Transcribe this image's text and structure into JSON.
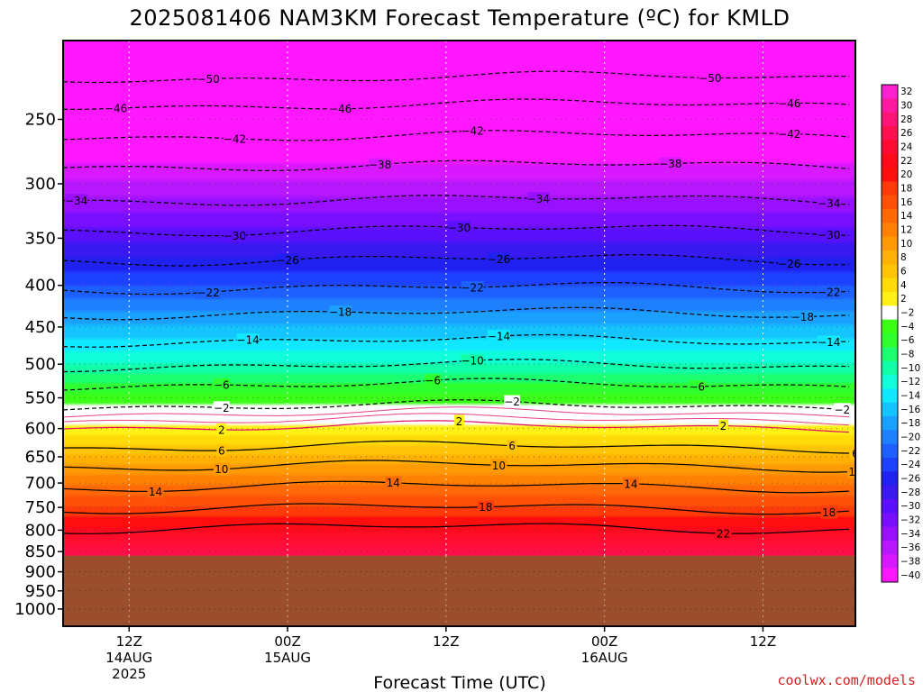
{
  "chart_data": {
    "type": "heatmap",
    "title": "2025081406 NAM3KM Forecast Temperature (ºC) for KMLD",
    "xlabel": "Forecast Time (UTC)",
    "ylabel": "",
    "y_scale": "log",
    "y_reversed": true,
    "y_ticks": [
      250,
      300,
      350,
      400,
      450,
      500,
      550,
      600,
      650,
      700,
      750,
      800,
      850,
      900,
      950,
      1000
    ],
    "y_range": [
      200,
      1050
    ],
    "x_range_hours": [
      -5,
      55
    ],
    "x_ticks": [
      {
        "hour": 0,
        "line1": "12Z",
        "line2": "14AUG",
        "line3": "2025"
      },
      {
        "hour": 12,
        "line1": "00Z",
        "line2": "15AUG",
        "line3": ""
      },
      {
        "hour": 24,
        "line1": "12Z",
        "line2": "",
        "line3": ""
      },
      {
        "hour": 36,
        "line1": "00Z",
        "line2": "16AUG",
        "line3": ""
      },
      {
        "hour": 48,
        "line1": "12Z",
        "line2": "",
        "line3": ""
      }
    ],
    "terrain_surface_pressure": 860,
    "terrain_color": "#9a4e2c",
    "colorbar": {
      "levels": [
        32,
        30,
        28,
        26,
        24,
        22,
        20,
        18,
        16,
        14,
        12,
        10,
        8,
        6,
        4,
        2,
        -2,
        -4,
        -6,
        -8,
        -10,
        -12,
        -14,
        -16,
        -18,
        -20,
        -22,
        -24,
        -26,
        -28,
        -30,
        -32,
        -34,
        -36,
        -38,
        -40
      ],
      "tick_labels": [
        "32",
        "30",
        "28",
        "26",
        "24",
        "22",
        "20",
        "18",
        "16",
        "14",
        "12",
        "10",
        "8",
        "6",
        "4",
        "2",
        "−2",
        "−4",
        "−6",
        "−8",
        "−10",
        "−12",
        "−14",
        "−16",
        "−18",
        "−20",
        "−22",
        "−24",
        "−26",
        "−28",
        "−30",
        "−32",
        "−34",
        "−36",
        "−38",
        "−40"
      ],
      "colors": [
        "#ff20d0",
        "#ff1aa0",
        "#ff1478",
        "#ff1050",
        "#ff0a32",
        "#ff0a1a",
        "#ff0e0e",
        "#ff3a0a",
        "#ff5208",
        "#ff6a06",
        "#ff8204",
        "#ff9a04",
        "#ffb004",
        "#ffc406",
        "#ffdc08",
        "#fff016",
        "#ffffff",
        "#3cff18",
        "#30ff30",
        "#1cff70",
        "#10ffa8",
        "#10ffd8",
        "#10e8ff",
        "#14c4ff",
        "#1aa0ff",
        "#1e80ff",
        "#1e60ff",
        "#1e40ff",
        "#2020f0",
        "#3a18f0",
        "#5a10ff",
        "#7810ff",
        "#9810ff",
        "#b818ff",
        "#d818ff",
        "#ff18ff"
      ]
    },
    "isotherms": [
      {
        "value": -50,
        "pressure": 222,
        "label": "−50",
        "labels_at_hours": [
          6,
          44
        ]
      },
      {
        "value": -46,
        "pressure": 240,
        "label": "−46",
        "labels_at_hours": [
          -1,
          16,
          50
        ]
      },
      {
        "value": -42,
        "pressure": 262,
        "label": "−42",
        "labels_at_hours": [
          8,
          26,
          50
        ]
      },
      {
        "value": -38,
        "pressure": 285,
        "label": "−38",
        "labels_at_hours": [
          19,
          41
        ]
      },
      {
        "value": -34,
        "pressure": 314,
        "label": "−34",
        "labels_at_hours": [
          -4,
          31,
          53
        ]
      },
      {
        "value": -30,
        "pressure": 342,
        "label": "−30",
        "labels_at_hours": [
          8,
          25,
          53
        ]
      },
      {
        "value": -26,
        "pressure": 372,
        "label": "−26",
        "labels_at_hours": [
          12,
          28,
          50
        ]
      },
      {
        "value": -22,
        "pressure": 403,
        "label": "−22",
        "labels_at_hours": [
          6,
          26,
          53
        ]
      },
      {
        "value": -18,
        "pressure": 433,
        "label": "−18",
        "labels_at_hours": [
          16,
          51
        ]
      },
      {
        "value": -14,
        "pressure": 468,
        "label": "−14",
        "labels_at_hours": [
          9,
          28,
          53
        ]
      },
      {
        "value": -10,
        "pressure": 502,
        "label": "−10",
        "labels_at_hours": [
          26
        ]
      },
      {
        "value": -6,
        "pressure": 530,
        "label": "−6",
        "labels_at_hours": [
          7,
          23,
          43
        ]
      },
      {
        "value": -2,
        "pressure": 563,
        "label": "−2",
        "labels_at_hours": [
          7,
          29,
          54
        ]
      },
      {
        "value": 2,
        "pressure": 597,
        "label": "2",
        "labels_at_hours": [
          7,
          25,
          45
        ]
      },
      {
        "value": 6,
        "pressure": 632,
        "label": "6",
        "labels_at_hours": [
          7,
          29,
          55
        ]
      },
      {
        "value": 10,
        "pressure": 667,
        "label": "10",
        "labels_at_hours": [
          7,
          28,
          55
        ]
      },
      {
        "value": 14,
        "pressure": 707,
        "label": "14",
        "labels_at_hours": [
          2,
          20,
          38
        ]
      },
      {
        "value": 18,
        "pressure": 752,
        "label": "18",
        "labels_at_hours": [
          27,
          53
        ]
      },
      {
        "value": 22,
        "pressure": 795,
        "label": "22",
        "labels_at_hours": [
          45
        ]
      }
    ]
  },
  "credit": "coolwx.com/models"
}
